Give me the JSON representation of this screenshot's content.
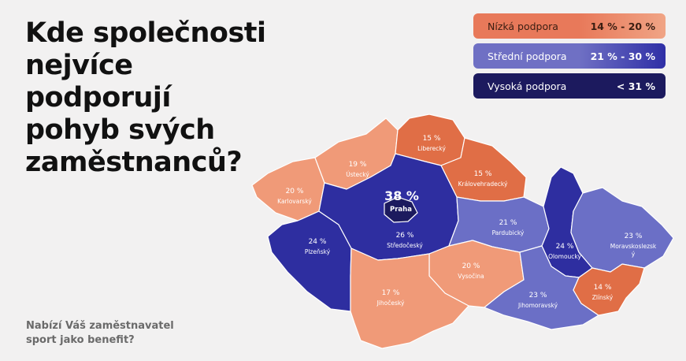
{
  "title": "Kde společnosti\nnejvíce podporují\npohyb svých\nzaměstnanců?",
  "subtitle": "Nabízí Váš zaměstnavatel\nsport jako benefit?",
  "legend": [
    {
      "label": "Nízká podpora",
      "range": "14 % - 20 %",
      "bg": "#e8795a",
      "range_bg": "#f0a485",
      "text": "#3a1e12"
    },
    {
      "label": "Střední podpora",
      "range": "21 % - 30 %",
      "bg": "#6f70c4",
      "range_bg": "#2f2fa6",
      "text": "#ffffff"
    },
    {
      "label": "Vysoká podpora",
      "range": "< 31 %",
      "bg": "#1c1a5e",
      "range_bg": "#1c1a5e",
      "text": "#ffffff"
    }
  ],
  "colors": {
    "low_dark": "#e06e46",
    "low_light": "#f09a78",
    "mid": "#6b6fc6",
    "high": "#2e2ea0",
    "top": "#1c1a5e"
  },
  "regions": [
    {
      "id": "karlovarsky",
      "name": "Karlovarský",
      "value": "20 %"
    },
    {
      "id": "ustecky",
      "name": "Ústecký",
      "value": "19 %"
    },
    {
      "id": "liberecky",
      "name": "Liberecký",
      "value": "15 %"
    },
    {
      "id": "kralovehradecky",
      "name": "Královehradecký",
      "value": "15 %"
    },
    {
      "id": "praha",
      "name": "Praha",
      "value": "38 %"
    },
    {
      "id": "stredocesky",
      "name": "Středočeský",
      "value": "26 %"
    },
    {
      "id": "plzensky",
      "name": "Plzeňský",
      "value": "24 %"
    },
    {
      "id": "pardubicky",
      "name": "Pardubický",
      "value": "21 %"
    },
    {
      "id": "olomoucky",
      "name": "Olomoucký",
      "value": "24 %"
    },
    {
      "id": "moravskoslezsky",
      "name": "Moravskoslezsk\ný",
      "value": "23 %"
    },
    {
      "id": "vysocina",
      "name": "Vysočina",
      "value": "20 %"
    },
    {
      "id": "jihocesky",
      "name": "Jihočeský",
      "value": "17 %"
    },
    {
      "id": "jihomoravsky",
      "name": "Jihomoravský",
      "value": "23 %"
    },
    {
      "id": "zlinsky",
      "name": "Zlínský",
      "value": "14 %"
    }
  ]
}
